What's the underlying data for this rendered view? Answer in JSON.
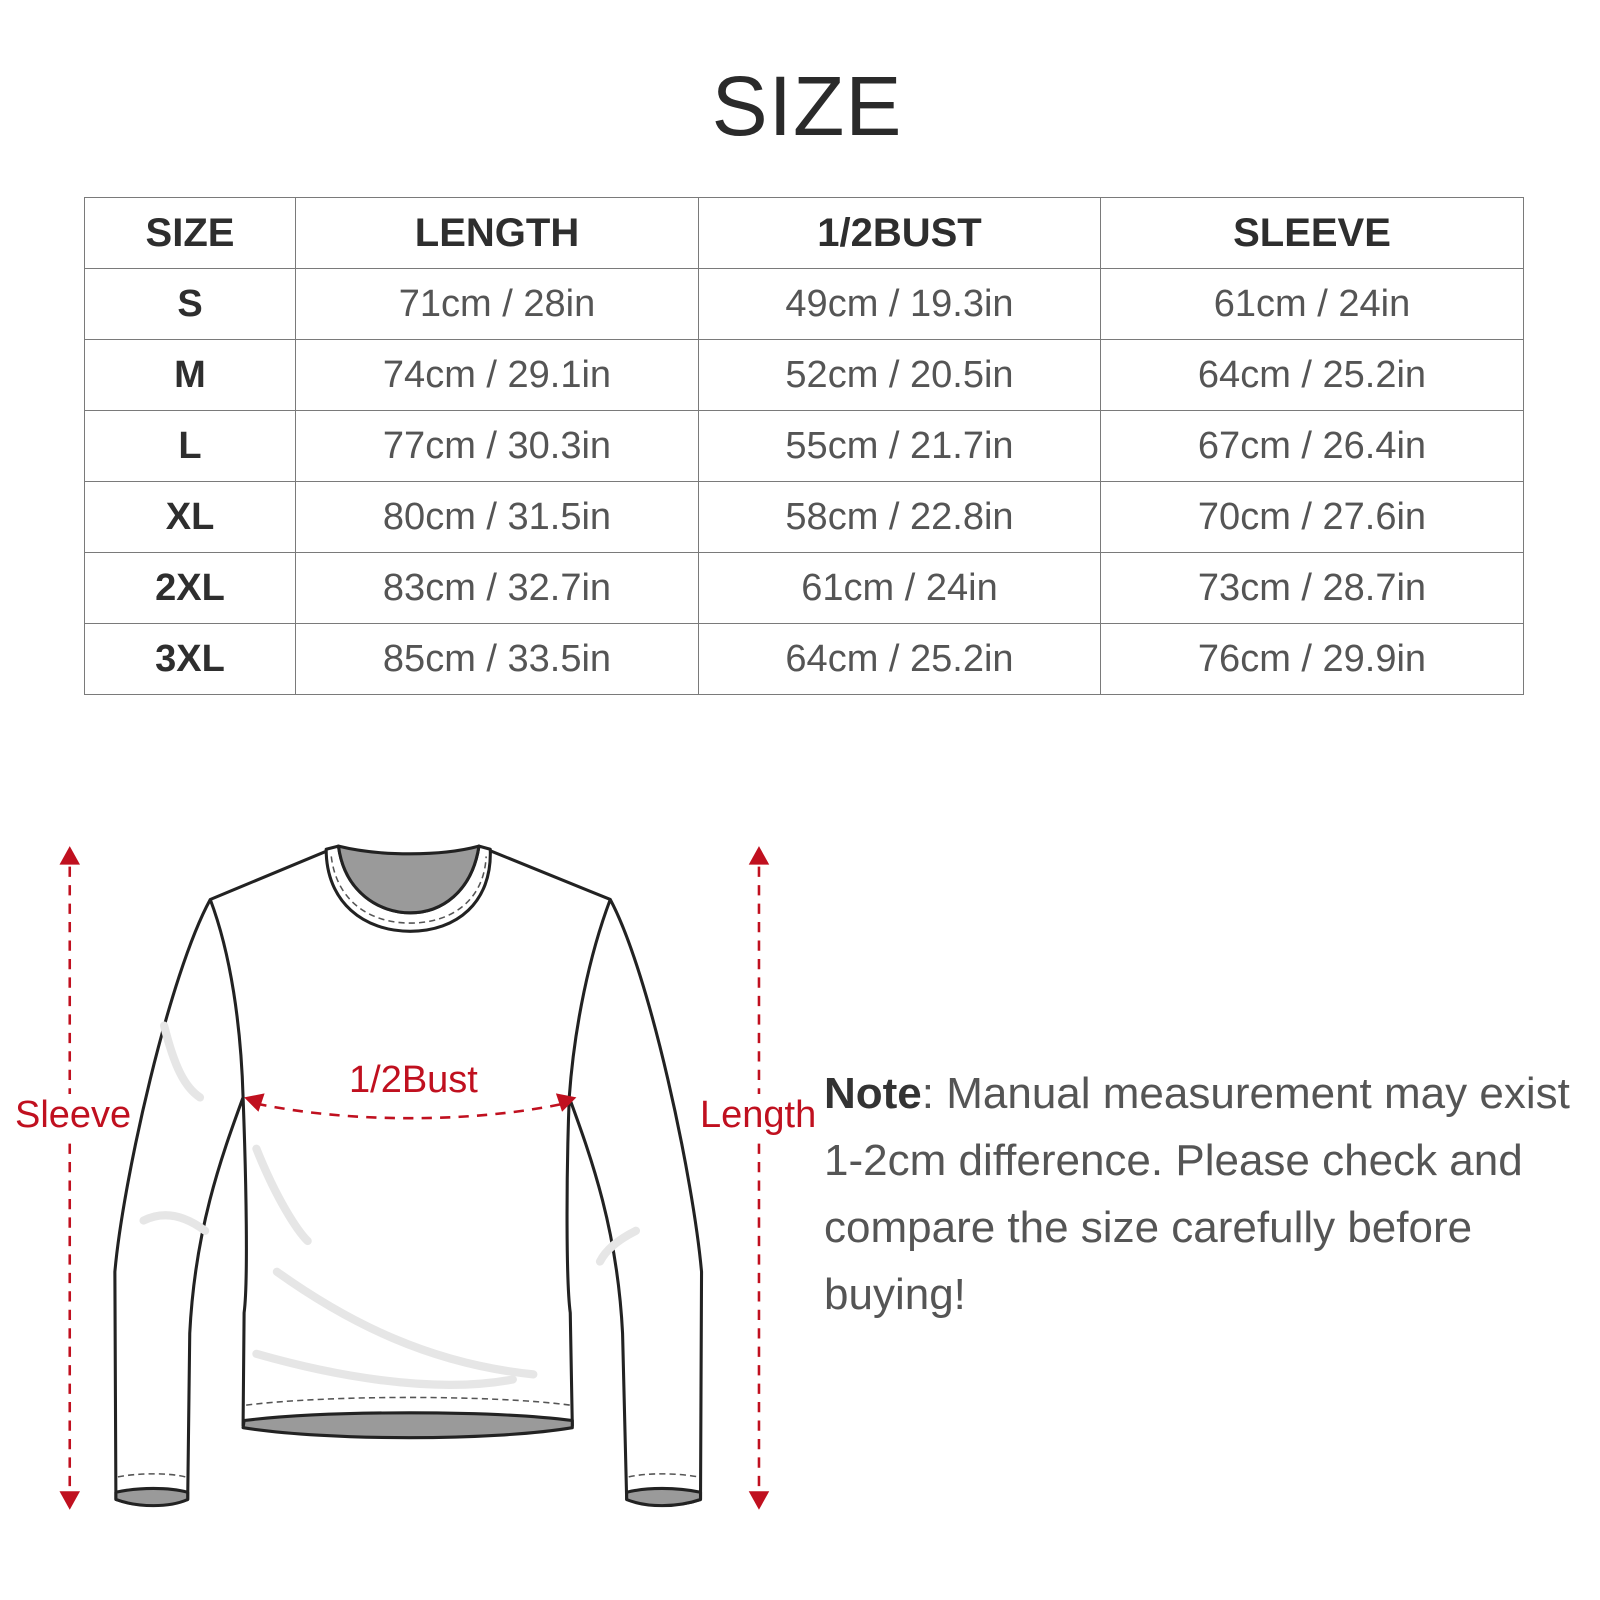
{
  "title": "SIZE",
  "table": {
    "headers": [
      "SIZE",
      "LENGTH",
      "1/2BUST",
      "SLEEVE"
    ],
    "rows": [
      [
        "S",
        "71cm / 28in",
        "49cm / 19.3in",
        "61cm / 24in"
      ],
      [
        "M",
        "74cm / 29.1in",
        "52cm / 20.5in",
        "64cm / 25.2in"
      ],
      [
        "L",
        "77cm / 30.3in",
        "55cm / 21.7in",
        "67cm / 26.4in"
      ],
      [
        "XL",
        "80cm / 31.5in",
        "58cm / 22.8in",
        "70cm / 27.6in"
      ],
      [
        "2XL",
        "83cm / 32.7in",
        "61cm / 24in",
        "73cm / 28.7in"
      ],
      [
        "3XL",
        "85cm / 33.5in",
        "64cm / 25.2in",
        "76cm / 29.9in"
      ]
    ]
  },
  "diagram": {
    "sleeve_label": "Sleeve",
    "length_label": "Length",
    "bust_label": "1/2Bust",
    "accent_color": "#c0101f"
  },
  "note": {
    "label": "Note",
    "text": ": Manual measurement may exist 1-2cm difference. Please check and compare the size carefully before buying!"
  }
}
